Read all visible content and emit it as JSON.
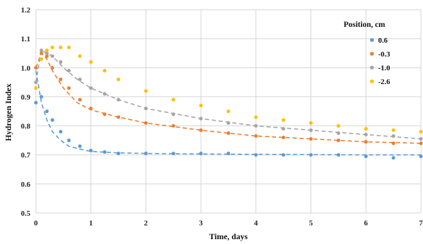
{
  "chart_data": {
    "type": "scatter",
    "title": "",
    "xlabel": "Time, days",
    "ylabel": "Hydrogen Index",
    "xlim": [
      0,
      7
    ],
    "ylim": [
      0.5,
      1.2
    ],
    "x_ticks": [
      0,
      1,
      2,
      3,
      4,
      5,
      6,
      7
    ],
    "y_ticks": [
      0.5,
      0.6,
      0.7,
      0.8,
      0.9,
      1.0,
      1.1,
      1.2
    ],
    "x_tick_labels": [
      "0",
      "1",
      "2",
      "3",
      "4",
      "5",
      "6",
      "7"
    ],
    "y_tick_labels": [
      "0.5",
      "0.6",
      "0.7",
      "0.8",
      "0.9",
      "1.0",
      "1.1",
      "1.2"
    ],
    "grid": true,
    "legend": {
      "title": "Position, cm",
      "placement": "top-right"
    },
    "series": [
      {
        "name": "0.6",
        "color": "#5b9bd5",
        "x": [
          0.0,
          0.1,
          0.2,
          0.3,
          0.45,
          0.6,
          0.8,
          1.0,
          1.25,
          1.5,
          2.0,
          2.5,
          3.0,
          3.5,
          4.0,
          4.5,
          5.0,
          5.5,
          6.0,
          6.5,
          7.0
        ],
        "y": [
          0.88,
          0.9,
          0.85,
          0.82,
          0.78,
          0.75,
          0.73,
          0.715,
          0.71,
          0.705,
          0.705,
          0.705,
          0.705,
          0.705,
          0.7,
          0.7,
          0.7,
          0.7,
          0.695,
          0.69,
          0.695
        ],
        "trend_x": [
          0.0,
          0.1,
          0.2,
          0.3,
          0.45,
          0.6,
          0.8,
          1.0,
          1.5,
          2.0,
          3.0,
          4.0,
          5.0,
          6.0,
          7.0
        ],
        "trend_y": [
          0.99,
          0.88,
          0.82,
          0.78,
          0.75,
          0.73,
          0.72,
          0.712,
          0.707,
          0.705,
          0.703,
          0.702,
          0.701,
          0.7,
          0.7
        ]
      },
      {
        "name": "-0.3",
        "color": "#ed7d31",
        "x": [
          0.0,
          0.1,
          0.2,
          0.3,
          0.45,
          0.6,
          0.8,
          1.0,
          1.25,
          1.5,
          2.0,
          2.5,
          3.0,
          3.5,
          4.0,
          4.5,
          5.0,
          5.5,
          6.0,
          6.5,
          7.0
        ],
        "y": [
          1.0,
          1.05,
          1.04,
          1.0,
          0.96,
          0.93,
          0.89,
          0.86,
          0.84,
          0.83,
          0.81,
          0.8,
          0.785,
          0.775,
          0.765,
          0.76,
          0.755,
          0.75,
          0.745,
          0.74,
          0.74
        ],
        "trend_x": [
          0.0,
          0.1,
          0.2,
          0.3,
          0.5,
          0.75,
          1.0,
          1.5,
          2.0,
          3.0,
          4.0,
          5.0,
          6.0,
          7.0
        ],
        "trend_y": [
          1.0,
          1.05,
          1.03,
          0.99,
          0.93,
          0.88,
          0.855,
          0.83,
          0.81,
          0.785,
          0.765,
          0.755,
          0.745,
          0.74
        ]
      },
      {
        "name": "-1.0",
        "color": "#a5a5a5",
        "x": [
          0.0,
          0.1,
          0.2,
          0.3,
          0.45,
          0.6,
          0.8,
          1.0,
          1.25,
          1.5,
          2.0,
          2.5,
          3.0,
          3.5,
          4.0,
          4.5,
          5.0,
          5.5,
          6.0,
          6.5,
          7.0
        ],
        "y": [
          0.95,
          1.06,
          1.05,
          1.04,
          1.02,
          0.99,
          0.96,
          0.93,
          0.91,
          0.89,
          0.86,
          0.84,
          0.825,
          0.81,
          0.8,
          0.79,
          0.785,
          0.775,
          0.77,
          0.765,
          0.755
        ],
        "trend_x": [
          0.0,
          0.1,
          0.2,
          0.3,
          0.5,
          0.75,
          1.0,
          1.5,
          2.0,
          3.0,
          4.0,
          5.0,
          6.0,
          7.0
        ],
        "trend_y": [
          0.95,
          1.06,
          1.05,
          1.04,
          1.0,
          0.96,
          0.93,
          0.89,
          0.86,
          0.825,
          0.8,
          0.785,
          0.77,
          0.755
        ]
      },
      {
        "name": "-2.6",
        "color": "#ffc000",
        "x": [
          0.0,
          0.1,
          0.2,
          0.3,
          0.45,
          0.6,
          0.8,
          1.0,
          1.25,
          1.5,
          2.0,
          2.5,
          3.0,
          3.5,
          4.0,
          4.5,
          5.0,
          5.5,
          6.0,
          6.5,
          7.0
        ],
        "y": [
          0.93,
          1.03,
          1.06,
          1.07,
          1.07,
          1.07,
          1.04,
          1.02,
          0.99,
          0.96,
          0.92,
          0.89,
          0.87,
          0.85,
          0.83,
          0.82,
          0.81,
          0.8,
          0.79,
          0.785,
          0.78
        ]
      }
    ]
  }
}
